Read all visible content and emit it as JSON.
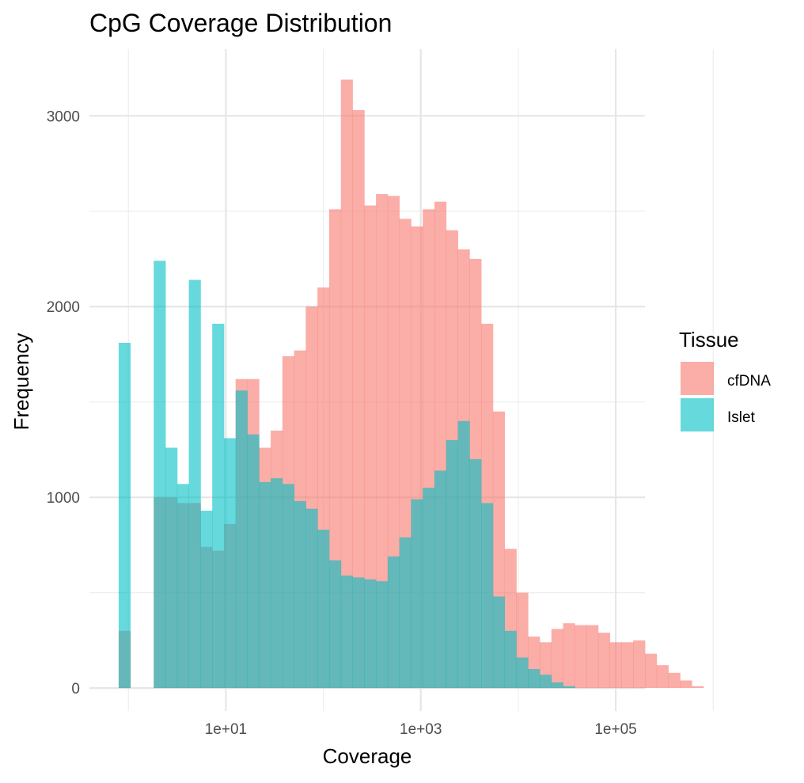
{
  "chart_data": {
    "type": "bar",
    "subtype": "overlapping-histogram",
    "title": "CpG Coverage Distribution",
    "xlabel": "Coverage",
    "ylabel": "Frequency",
    "x_scale": "log10",
    "x_bin_start_log10": -0.1,
    "x_bin_width_log10": 0.12,
    "xlim_log10": [
      -0.4,
      5.3
    ],
    "ylim": [
      -120,
      3350
    ],
    "x_ticks": [
      {
        "value_log10": 1,
        "label": "1e+01"
      },
      {
        "value_log10": 3,
        "label": "1e+03"
      },
      {
        "value_log10": 5,
        "label": "1e+05"
      }
    ],
    "x_minor_ticks_log10": [
      0,
      2,
      4,
      6
    ],
    "y_ticks": [
      {
        "value": 0,
        "label": "0"
      },
      {
        "value": 1000,
        "label": "1000"
      },
      {
        "value": 2000,
        "label": "2000"
      },
      {
        "value": 3000,
        "label": "3000"
      }
    ],
    "y_minor_ticks": [
      500,
      1500,
      2500
    ],
    "grid": true,
    "opacity": 0.6,
    "legend": {
      "title": "Tissue",
      "position": "right"
    },
    "series": [
      {
        "name": "cfDNA",
        "color": "#F8766D",
        "values": [
          300,
          0,
          0,
          1000,
          1000,
          970,
          970,
          740,
          720,
          860,
          1620,
          1620,
          1260,
          1350,
          1740,
          1770,
          2000,
          2100,
          2510,
          3190,
          3030,
          2530,
          2590,
          2580,
          2460,
          2420,
          2510,
          2550,
          2400,
          2300,
          2250,
          1910,
          1450,
          730,
          500,
          270,
          240,
          310,
          340,
          330,
          330,
          290,
          240,
          240,
          250,
          180,
          120,
          80,
          40,
          10
        ]
      },
      {
        "name": "Islet",
        "color": "#00BFC4",
        "values": [
          1810,
          0,
          0,
          2240,
          1260,
          1070,
          2140,
          930,
          1910,
          1310,
          1560,
          1330,
          1080,
          1100,
          1070,
          980,
          940,
          830,
          670,
          590,
          580,
          570,
          560,
          690,
          790,
          990,
          1050,
          1140,
          1300,
          1400,
          1200,
          970,
          480,
          300,
          160,
          100,
          70,
          30,
          10,
          0,
          0,
          0,
          0,
          0,
          0,
          0,
          0,
          0,
          0,
          0
        ]
      }
    ]
  }
}
